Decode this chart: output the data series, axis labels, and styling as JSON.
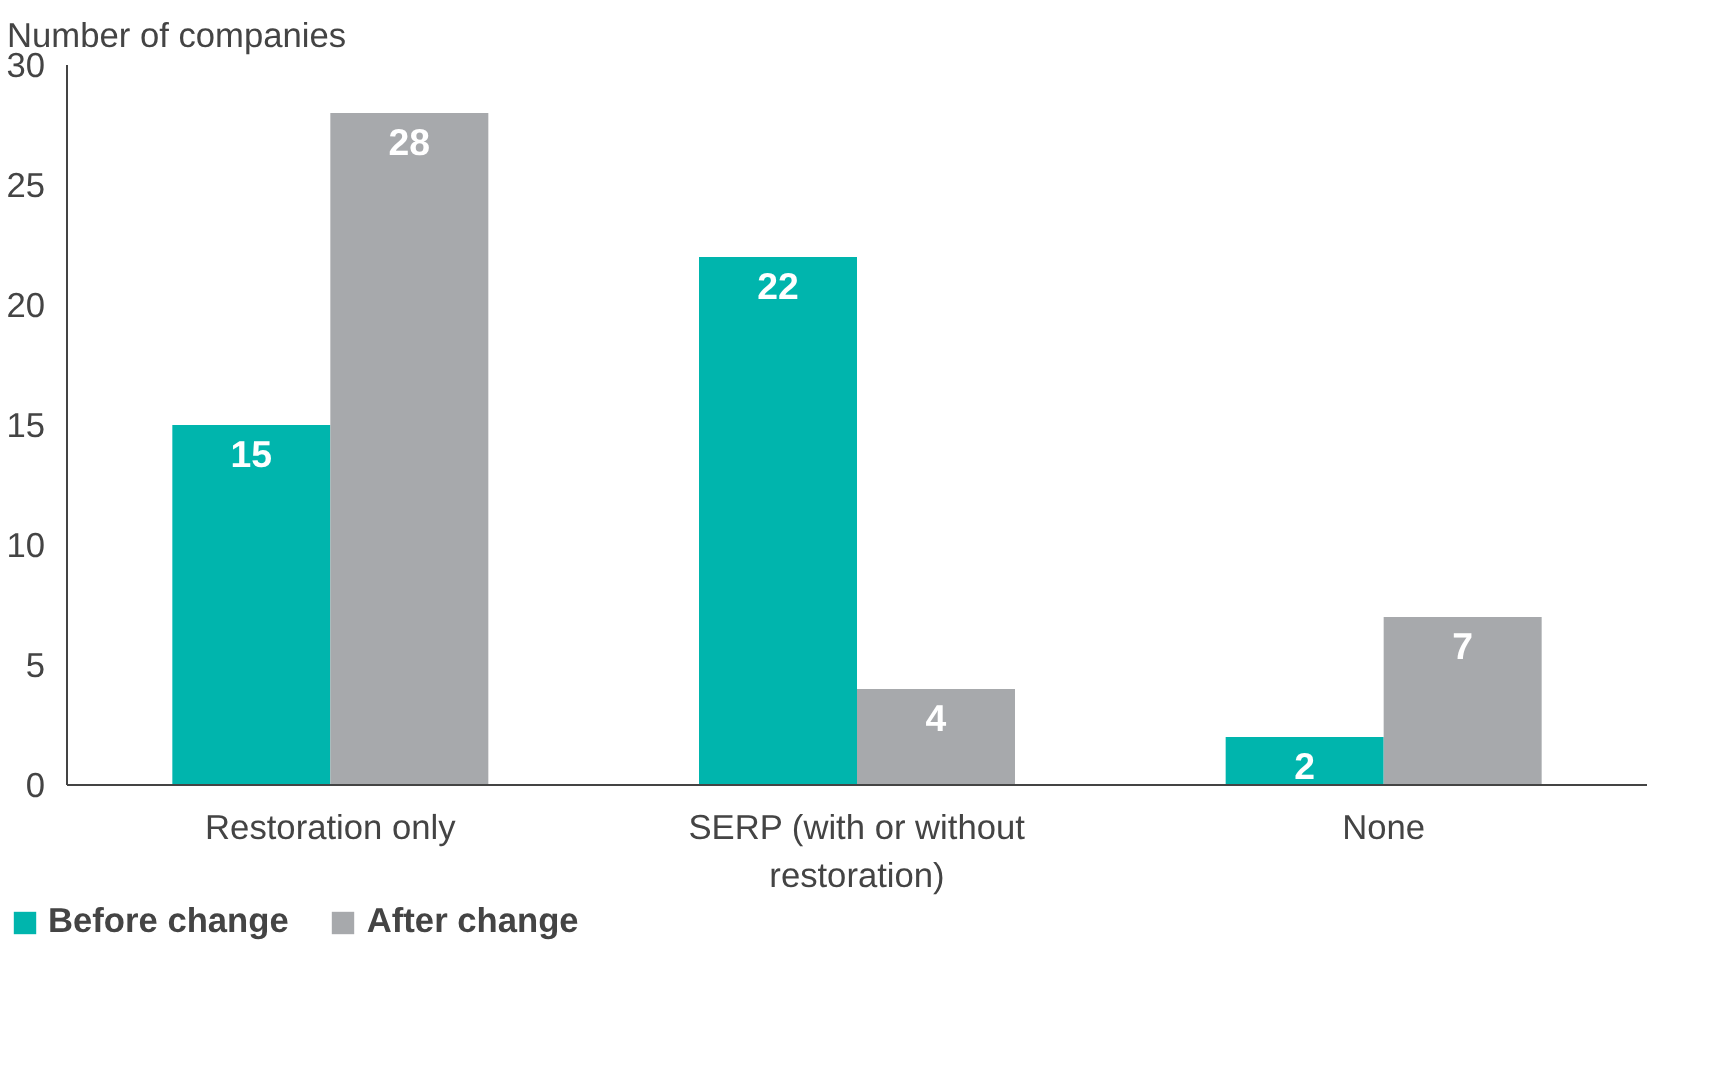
{
  "chart_data": {
    "type": "bar",
    "ylabel": "Number of companies",
    "categories": [
      "Restoration only",
      "SERP (with or without\nrestoration)",
      "None"
    ],
    "series": [
      {
        "name": "Before change",
        "color": "#00b5ad",
        "values": [
          15,
          22,
          2
        ]
      },
      {
        "name": "After change",
        "color": "#a7a9ac",
        "values": [
          28,
          4,
          7
        ]
      }
    ],
    "ylim": [
      0,
      30
    ],
    "yticks": [
      0,
      5,
      10,
      15,
      20,
      25,
      30
    ],
    "grid": false,
    "legend": "bottom left",
    "data_labels": true
  }
}
